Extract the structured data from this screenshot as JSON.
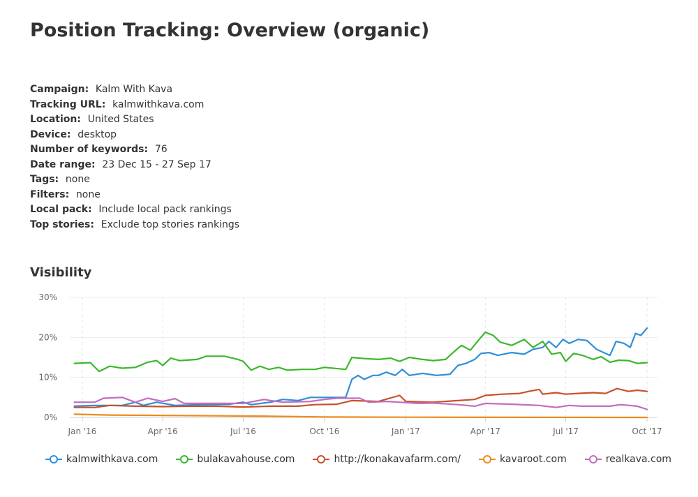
{
  "report": {
    "title": "Position Tracking: Overview (organic)",
    "meta": [
      {
        "label": "Campaign:",
        "value": "Kalm With Kava"
      },
      {
        "label": "Tracking URL:",
        "value": "kalmwithkava.com"
      },
      {
        "label": "Location:",
        "value": "United States"
      },
      {
        "label": "Device:",
        "value": "desktop"
      },
      {
        "label": "Number of keywords:",
        "value": "76"
      },
      {
        "label": "Date range:",
        "value": "23 Dec 15 - 27 Sep 17"
      },
      {
        "label": "Tags:",
        "value": "none"
      },
      {
        "label": "Filters:",
        "value": "none"
      },
      {
        "label": "Local pack:",
        "value": "Include local pack rankings"
      },
      {
        "label": "Top stories:",
        "value": "Exclude top stories rankings"
      }
    ],
    "section_title": "Visibility"
  },
  "chart_data": {
    "type": "line",
    "title": "Visibility",
    "xlabel": "",
    "ylabel": "",
    "x_start": "2015-12-23",
    "x_end": "2017-09-27",
    "y_unit": "%",
    "ylim": [
      0,
      30
    ],
    "y_ticks": [
      0,
      10,
      20,
      30
    ],
    "y_tick_labels": [
      "0%",
      "10%",
      "20%",
      "30%"
    ],
    "x_ticks": [
      "2016-01-01",
      "2016-04-01",
      "2016-07-01",
      "2016-10-01",
      "2017-01-01",
      "2017-04-01",
      "2017-07-01",
      "2017-10-01"
    ],
    "x_tick_labels": [
      "Jan '16",
      "Apr '16",
      "Jul '16",
      "Oct '16",
      "Jan '17",
      "Apr '17",
      "Jul '17",
      "Oct '17"
    ],
    "grid": true,
    "legend_position": "bottom",
    "series": [
      {
        "name": "kalmwithkava.com",
        "color": "#2f8fd8",
        "points": [
          [
            "2015-12-23",
            2.8
          ],
          [
            "2016-01-15",
            3.0
          ],
          [
            "2016-02-15",
            3.0
          ],
          [
            "2016-03-01",
            3.8
          ],
          [
            "2016-03-10",
            3.0
          ],
          [
            "2016-03-25",
            3.8
          ],
          [
            "2016-04-15",
            3.0
          ],
          [
            "2016-05-15",
            3.2
          ],
          [
            "2016-06-15",
            3.3
          ],
          [
            "2016-07-01",
            3.8
          ],
          [
            "2016-07-10",
            3.2
          ],
          [
            "2016-08-01",
            3.8
          ],
          [
            "2016-08-15",
            4.5
          ],
          [
            "2016-09-01",
            4.2
          ],
          [
            "2016-09-15",
            5.0
          ],
          [
            "2016-10-01",
            5.0
          ],
          [
            "2016-10-25",
            5.0
          ],
          [
            "2016-11-01",
            9.5
          ],
          [
            "2016-11-08",
            10.5
          ],
          [
            "2016-11-15",
            9.5
          ],
          [
            "2016-11-25",
            10.5
          ],
          [
            "2016-12-01",
            10.5
          ],
          [
            "2016-12-10",
            11.3
          ],
          [
            "2016-12-20",
            10.5
          ],
          [
            "2016-12-28",
            12.0
          ],
          [
            "2017-01-05",
            10.5
          ],
          [
            "2017-01-20",
            11.0
          ],
          [
            "2017-02-05",
            10.5
          ],
          [
            "2017-02-20",
            10.8
          ],
          [
            "2017-03-01",
            13.0
          ],
          [
            "2017-03-10",
            13.5
          ],
          [
            "2017-03-20",
            14.5
          ],
          [
            "2017-03-27",
            16.0
          ],
          [
            "2017-04-05",
            16.2
          ],
          [
            "2017-04-15",
            15.5
          ],
          [
            "2017-05-01",
            16.2
          ],
          [
            "2017-05-15",
            15.8
          ],
          [
            "2017-05-25",
            17.0
          ],
          [
            "2017-06-05",
            17.5
          ],
          [
            "2017-06-12",
            19.0
          ],
          [
            "2017-06-20",
            17.5
          ],
          [
            "2017-06-28",
            19.5
          ],
          [
            "2017-07-05",
            18.5
          ],
          [
            "2017-07-15",
            19.5
          ],
          [
            "2017-07-25",
            19.2
          ],
          [
            "2017-08-05",
            17.0
          ],
          [
            "2017-08-20",
            15.5
          ],
          [
            "2017-08-27",
            19.0
          ],
          [
            "2017-09-05",
            18.5
          ],
          [
            "2017-09-12",
            17.5
          ],
          [
            "2017-09-18",
            21.0
          ],
          [
            "2017-09-24",
            20.5
          ],
          [
            "2017-10-01",
            22.3
          ]
        ]
      },
      {
        "name": "bulakavahouse.com",
        "color": "#3cb72c",
        "points": [
          [
            "2015-12-23",
            13.5
          ],
          [
            "2016-01-10",
            13.7
          ],
          [
            "2016-01-20",
            11.5
          ],
          [
            "2016-02-01",
            12.8
          ],
          [
            "2016-02-15",
            12.3
          ],
          [
            "2016-03-01",
            12.5
          ],
          [
            "2016-03-15",
            13.8
          ],
          [
            "2016-03-25",
            14.2
          ],
          [
            "2016-04-01",
            13.0
          ],
          [
            "2016-04-10",
            14.8
          ],
          [
            "2016-04-20",
            14.2
          ],
          [
            "2016-05-10",
            14.5
          ],
          [
            "2016-05-20",
            15.3
          ],
          [
            "2016-06-10",
            15.3
          ],
          [
            "2016-06-25",
            14.5
          ],
          [
            "2016-07-01",
            14.0
          ],
          [
            "2016-07-10",
            11.8
          ],
          [
            "2016-07-20",
            12.8
          ],
          [
            "2016-07-30",
            12.0
          ],
          [
            "2016-08-10",
            12.5
          ],
          [
            "2016-08-20",
            11.8
          ],
          [
            "2016-09-05",
            12.0
          ],
          [
            "2016-09-20",
            12.0
          ],
          [
            "2016-10-01",
            12.5
          ],
          [
            "2016-10-25",
            12.0
          ],
          [
            "2016-11-01",
            15.0
          ],
          [
            "2016-11-15",
            14.7
          ],
          [
            "2016-12-01",
            14.5
          ],
          [
            "2016-12-15",
            14.8
          ],
          [
            "2016-12-25",
            14.0
          ],
          [
            "2017-01-05",
            15.0
          ],
          [
            "2017-01-20",
            14.5
          ],
          [
            "2017-02-01",
            14.2
          ],
          [
            "2017-02-15",
            14.5
          ],
          [
            "2017-02-25",
            16.5
          ],
          [
            "2017-03-05",
            18.0
          ],
          [
            "2017-03-15",
            16.8
          ],
          [
            "2017-03-25",
            19.5
          ],
          [
            "2017-04-01",
            21.3
          ],
          [
            "2017-04-10",
            20.5
          ],
          [
            "2017-04-18",
            18.8
          ],
          [
            "2017-05-01",
            18.0
          ],
          [
            "2017-05-15",
            19.5
          ],
          [
            "2017-05-25",
            17.5
          ],
          [
            "2017-06-05",
            19.0
          ],
          [
            "2017-06-15",
            15.8
          ],
          [
            "2017-06-25",
            16.2
          ],
          [
            "2017-07-01",
            14.0
          ],
          [
            "2017-07-10",
            16.0
          ],
          [
            "2017-07-20",
            15.5
          ],
          [
            "2017-08-01",
            14.5
          ],
          [
            "2017-08-10",
            15.2
          ],
          [
            "2017-08-20",
            13.8
          ],
          [
            "2017-08-30",
            14.3
          ],
          [
            "2017-09-10",
            14.2
          ],
          [
            "2017-09-20",
            13.5
          ],
          [
            "2017-10-01",
            13.7
          ]
        ]
      },
      {
        "name": "http://konakavafarm.com/",
        "color": "#c9512d",
        "points": [
          [
            "2015-12-23",
            2.5
          ],
          [
            "2016-01-15",
            2.5
          ],
          [
            "2016-02-01",
            3.0
          ],
          [
            "2016-03-01",
            2.8
          ],
          [
            "2016-04-01",
            2.7
          ],
          [
            "2016-05-01",
            2.8
          ],
          [
            "2016-06-01",
            2.8
          ],
          [
            "2016-07-01",
            2.6
          ],
          [
            "2016-08-01",
            2.8
          ],
          [
            "2016-09-01",
            2.8
          ],
          [
            "2016-09-20",
            3.2
          ],
          [
            "2016-10-15",
            3.3
          ],
          [
            "2016-11-01",
            4.2
          ],
          [
            "2016-12-01",
            4.0
          ],
          [
            "2016-12-25",
            5.5
          ],
          [
            "2017-01-01",
            4.0
          ],
          [
            "2017-02-01",
            3.8
          ],
          [
            "2017-03-01",
            4.2
          ],
          [
            "2017-03-20",
            4.5
          ],
          [
            "2017-04-01",
            5.5
          ],
          [
            "2017-04-20",
            5.8
          ],
          [
            "2017-05-10",
            6.0
          ],
          [
            "2017-05-20",
            6.5
          ],
          [
            "2017-06-01",
            7.0
          ],
          [
            "2017-06-05",
            5.8
          ],
          [
            "2017-06-20",
            6.2
          ],
          [
            "2017-07-01",
            5.8
          ],
          [
            "2017-07-15",
            6.0
          ],
          [
            "2017-08-01",
            6.2
          ],
          [
            "2017-08-15",
            6.0
          ],
          [
            "2017-08-28",
            7.2
          ],
          [
            "2017-09-10",
            6.5
          ],
          [
            "2017-09-20",
            6.8
          ],
          [
            "2017-10-01",
            6.5
          ]
        ]
      },
      {
        "name": "kavaroot.com",
        "color": "#f08a1c",
        "points": [
          [
            "2015-12-23",
            0.8
          ],
          [
            "2016-02-01",
            0.6
          ],
          [
            "2016-04-01",
            0.5
          ],
          [
            "2016-06-01",
            0.4
          ],
          [
            "2016-08-01",
            0.3
          ],
          [
            "2016-09-01",
            0.2
          ],
          [
            "2016-10-01",
            0.1
          ],
          [
            "2017-01-01",
            0.05
          ],
          [
            "2017-10-01",
            0.0
          ]
        ]
      },
      {
        "name": "realkava.com",
        "color": "#c36cbf",
        "points": [
          [
            "2015-12-23",
            3.8
          ],
          [
            "2016-01-15",
            3.8
          ],
          [
            "2016-01-25",
            4.8
          ],
          [
            "2016-02-15",
            5.0
          ],
          [
            "2016-03-01",
            3.8
          ],
          [
            "2016-03-15",
            4.8
          ],
          [
            "2016-04-01",
            4.0
          ],
          [
            "2016-04-15",
            4.7
          ],
          [
            "2016-04-25",
            3.5
          ],
          [
            "2016-05-15",
            3.5
          ],
          [
            "2016-06-15",
            3.5
          ],
          [
            "2016-07-01",
            3.5
          ],
          [
            "2016-07-25",
            4.5
          ],
          [
            "2016-08-01",
            4.2
          ],
          [
            "2016-08-15",
            3.8
          ],
          [
            "2016-09-15",
            4.0
          ],
          [
            "2016-10-01",
            4.5
          ],
          [
            "2016-10-15",
            4.8
          ],
          [
            "2016-11-10",
            4.8
          ],
          [
            "2016-11-20",
            3.8
          ],
          [
            "2016-12-10",
            4.0
          ],
          [
            "2016-12-25",
            3.8
          ],
          [
            "2017-01-15",
            3.5
          ],
          [
            "2017-02-01",
            3.6
          ],
          [
            "2017-03-01",
            3.2
          ],
          [
            "2017-03-20",
            2.8
          ],
          [
            "2017-04-01",
            3.5
          ],
          [
            "2017-05-01",
            3.3
          ],
          [
            "2017-06-01",
            3.0
          ],
          [
            "2017-06-20",
            2.5
          ],
          [
            "2017-07-05",
            3.0
          ],
          [
            "2017-07-20",
            2.8
          ],
          [
            "2017-08-20",
            2.8
          ],
          [
            "2017-09-01",
            3.2
          ],
          [
            "2017-09-20",
            2.8
          ],
          [
            "2017-10-01",
            2.0
          ]
        ]
      }
    ]
  }
}
